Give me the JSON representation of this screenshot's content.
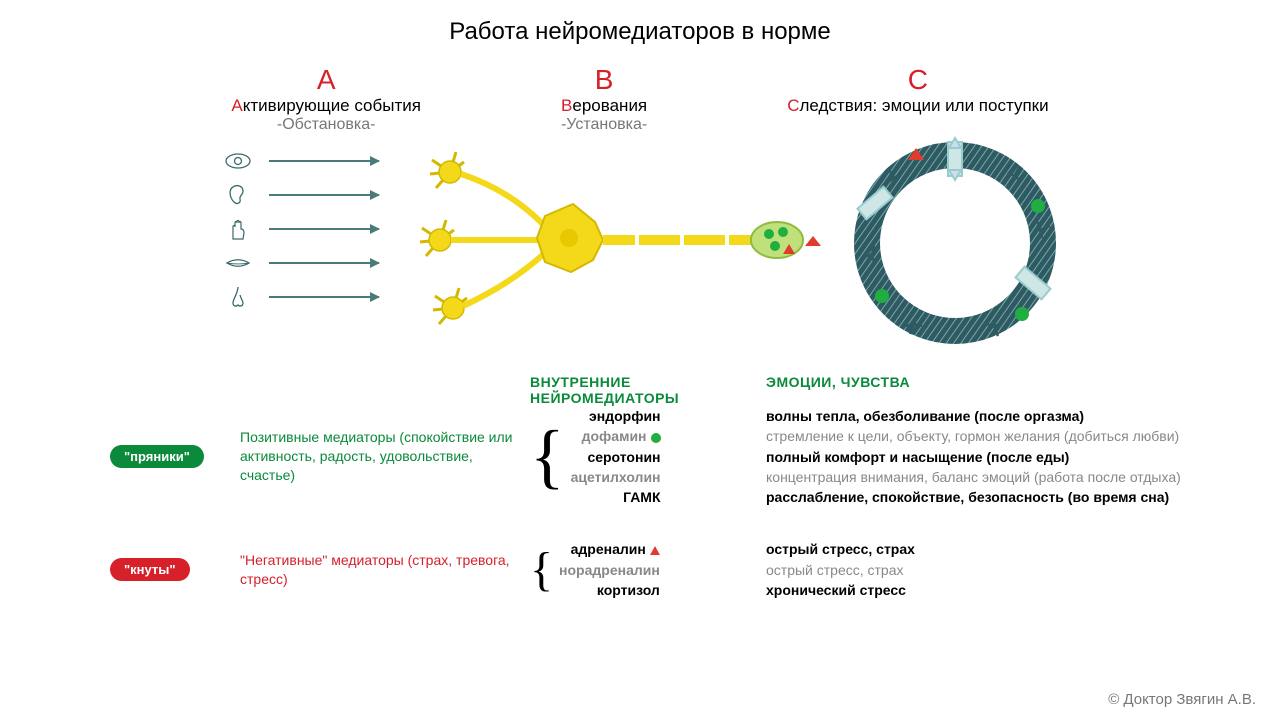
{
  "colors": {
    "accent_red": "#d6202a",
    "accent_green": "#0a8a3a",
    "muted": "#888888",
    "ink": "#000000",
    "arrow": "#4a7a7a",
    "neuron_fill": "#f3d91a",
    "neuron_stroke": "#d4b800",
    "ring_fill": "#2e5a62",
    "ring_hatch": "#7aa7ad",
    "vesicle_green": "#1fae3f",
    "vesicle_red": "#e23b2e",
    "pill_green_bg": "#0a8a3a",
    "pill_red_bg": "#d6202a"
  },
  "title": "Работа нейромедиаторов в норме",
  "columns": {
    "a": {
      "letter": "A",
      "label_prefix": "А",
      "label_rest": "ктивирующие события",
      "sub": "-Обстановка-"
    },
    "b": {
      "letter": "B",
      "label_prefix": "В",
      "label_rest": "ерования",
      "sub": "-Установка-"
    },
    "c": {
      "letter": "C",
      "label_prefix": "С",
      "label_rest": "ледствия: эмоции или поступки",
      "sub": ""
    }
  },
  "senses": [
    "eye",
    "ear",
    "hand",
    "mouth",
    "nose"
  ],
  "legend": {
    "header_left": "ВНУТРЕННИЕ НЕЙРОМЕДИАТОРЫ",
    "header_right": "ЭМОЦИИ, ЧУВСТВА",
    "positive": {
      "pill": "\"пряники\"",
      "pill_bg": "#0a8a3a",
      "desc_color": "#0a8a3a",
      "desc": "Позитивные медиаторы (спокойствие или активность, радость, удовольствие, счастье)",
      "mediators": [
        {
          "name": "эндорфин",
          "muted": false
        },
        {
          "name": "дофамин",
          "muted": true,
          "marker": "green-dot"
        },
        {
          "name": "серотонин",
          "muted": false
        },
        {
          "name": "ацетилхолин",
          "muted": true
        },
        {
          "name": "ГАМК",
          "muted": false
        }
      ],
      "emotions": [
        {
          "text": "волны тепла, обезболивание (после оргазма)",
          "bold": true
        },
        {
          "text": "стремление к цели, объекту, гормон желания (добиться любви)",
          "bold": false
        },
        {
          "text": "полный комфорт и насыщение (после еды)",
          "bold": true
        },
        {
          "text": "концентрация внимания, баланс эмоций (работа после отдыха)",
          "bold": false
        },
        {
          "text": "расслабление, спокойствие, безопасность (во время сна)",
          "bold": true
        }
      ]
    },
    "negative": {
      "pill": "\"кнуты\"",
      "pill_bg": "#d6202a",
      "desc_color": "#d6202a",
      "desc": "\"Негативные\" медиаторы (страх, тревога, стресс)",
      "mediators": [
        {
          "name": "адреналин",
          "muted": false,
          "marker": "red-tri"
        },
        {
          "name": "норадреналин",
          "muted": true
        },
        {
          "name": "кортизол",
          "muted": false
        }
      ],
      "emotions": [
        {
          "text": "острый стресс, страх",
          "bold": true
        },
        {
          "text": "острый стресс, страх",
          "bold": false
        },
        {
          "text": "хронический стресс",
          "bold": true
        }
      ]
    }
  },
  "credit": "© Доктор Звягин А.В."
}
